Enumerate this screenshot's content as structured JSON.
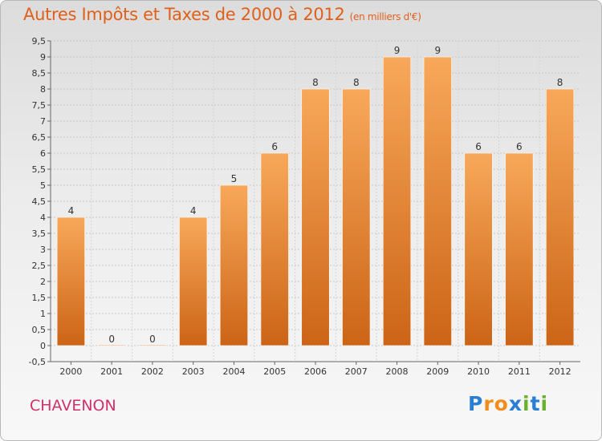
{
  "header": {
    "title": "Autres Impôts et Taxes de 2000 à 2012",
    "unit": "(en milliers d'€)"
  },
  "footer": {
    "place": "CHAVENON",
    "logo": {
      "p": "P",
      "r": "r",
      "o": "o",
      "x": "x",
      "i1": "i",
      "t": "t",
      "i2": "i"
    }
  },
  "colors": {
    "title": "#e0601a",
    "place": "#d0306a",
    "bar_top": "#f8a85a",
    "bar_bottom": "#cc6416"
  },
  "chart_data": {
    "type": "bar",
    "title": "Autres Impôts et Taxes de 2000 à 2012",
    "categories": [
      "2000",
      "2001",
      "2002",
      "2003",
      "2004",
      "2005",
      "2006",
      "2007",
      "2008",
      "2009",
      "2010",
      "2011",
      "2012"
    ],
    "values": [
      4,
      0,
      0,
      4,
      5,
      6,
      8,
      8,
      9,
      9,
      6,
      6,
      8
    ],
    "labels": [
      "4",
      "0",
      "0",
      "4",
      "5",
      "6",
      "8",
      "8",
      "9",
      "9",
      "6",
      "6",
      "8"
    ],
    "ylim": [
      -0.5,
      9.5
    ],
    "yticks": [
      "-0,5",
      "0",
      "0,5",
      "1",
      "1,5",
      "2",
      "2,5",
      "3",
      "3,5",
      "4",
      "4,5",
      "5",
      "5,5",
      "6",
      "6,5",
      "7",
      "7,5",
      "8",
      "8,5",
      "9",
      "9,5"
    ],
    "ytick_values": [
      -0.5,
      0,
      0.5,
      1,
      1.5,
      2,
      2.5,
      3,
      3.5,
      4,
      4.5,
      5,
      5.5,
      6,
      6.5,
      7,
      7.5,
      8,
      8.5,
      9,
      9.5
    ],
    "grid": true,
    "legend": "none"
  }
}
